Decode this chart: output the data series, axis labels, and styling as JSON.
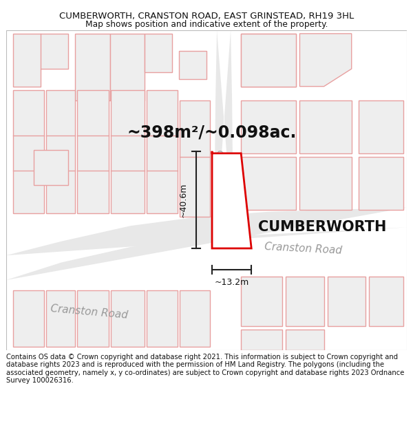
{
  "title_line1": "CUMBERWORTH, CRANSTON ROAD, EAST GRINSTEAD, RH19 3HL",
  "title_line2": "Map shows position and indicative extent of the property.",
  "area_label": "~398m²/~0.098ac.",
  "property_name": "CUMBERWORTH",
  "dim_width": "~13.2m",
  "dim_height": "~40.6m",
  "footer": "Contains OS data © Crown copyright and database right 2021. This information is subject to Crown copyright and database rights 2023 and is reproduced with the permission of HM Land Registry. The polygons (including the associated geometry, namely x, y co-ordinates) are subject to Crown copyright and database rights 2023 Ordnance Survey 100026316.",
  "bg_color": "#ffffff",
  "map_bg": "#ffffff",
  "building_outline_color": "#e8a0a0",
  "building_fill_color": "#eeeeee",
  "subject_outline_color": "#dd0000",
  "road_fill_color": "#e8e8e8",
  "road_label_color": "#999999",
  "text_color": "#111111",
  "arrow_color": "#222222",
  "title_fontsize": 9.5,
  "subtitle_fontsize": 8.8,
  "area_fontsize": 17,
  "property_fontsize": 15,
  "dim_fontsize": 9,
  "footer_fontsize": 7.2,
  "cranston_road_label_fontsize": 11,
  "cranston_gardens_label_fontsize": 8
}
